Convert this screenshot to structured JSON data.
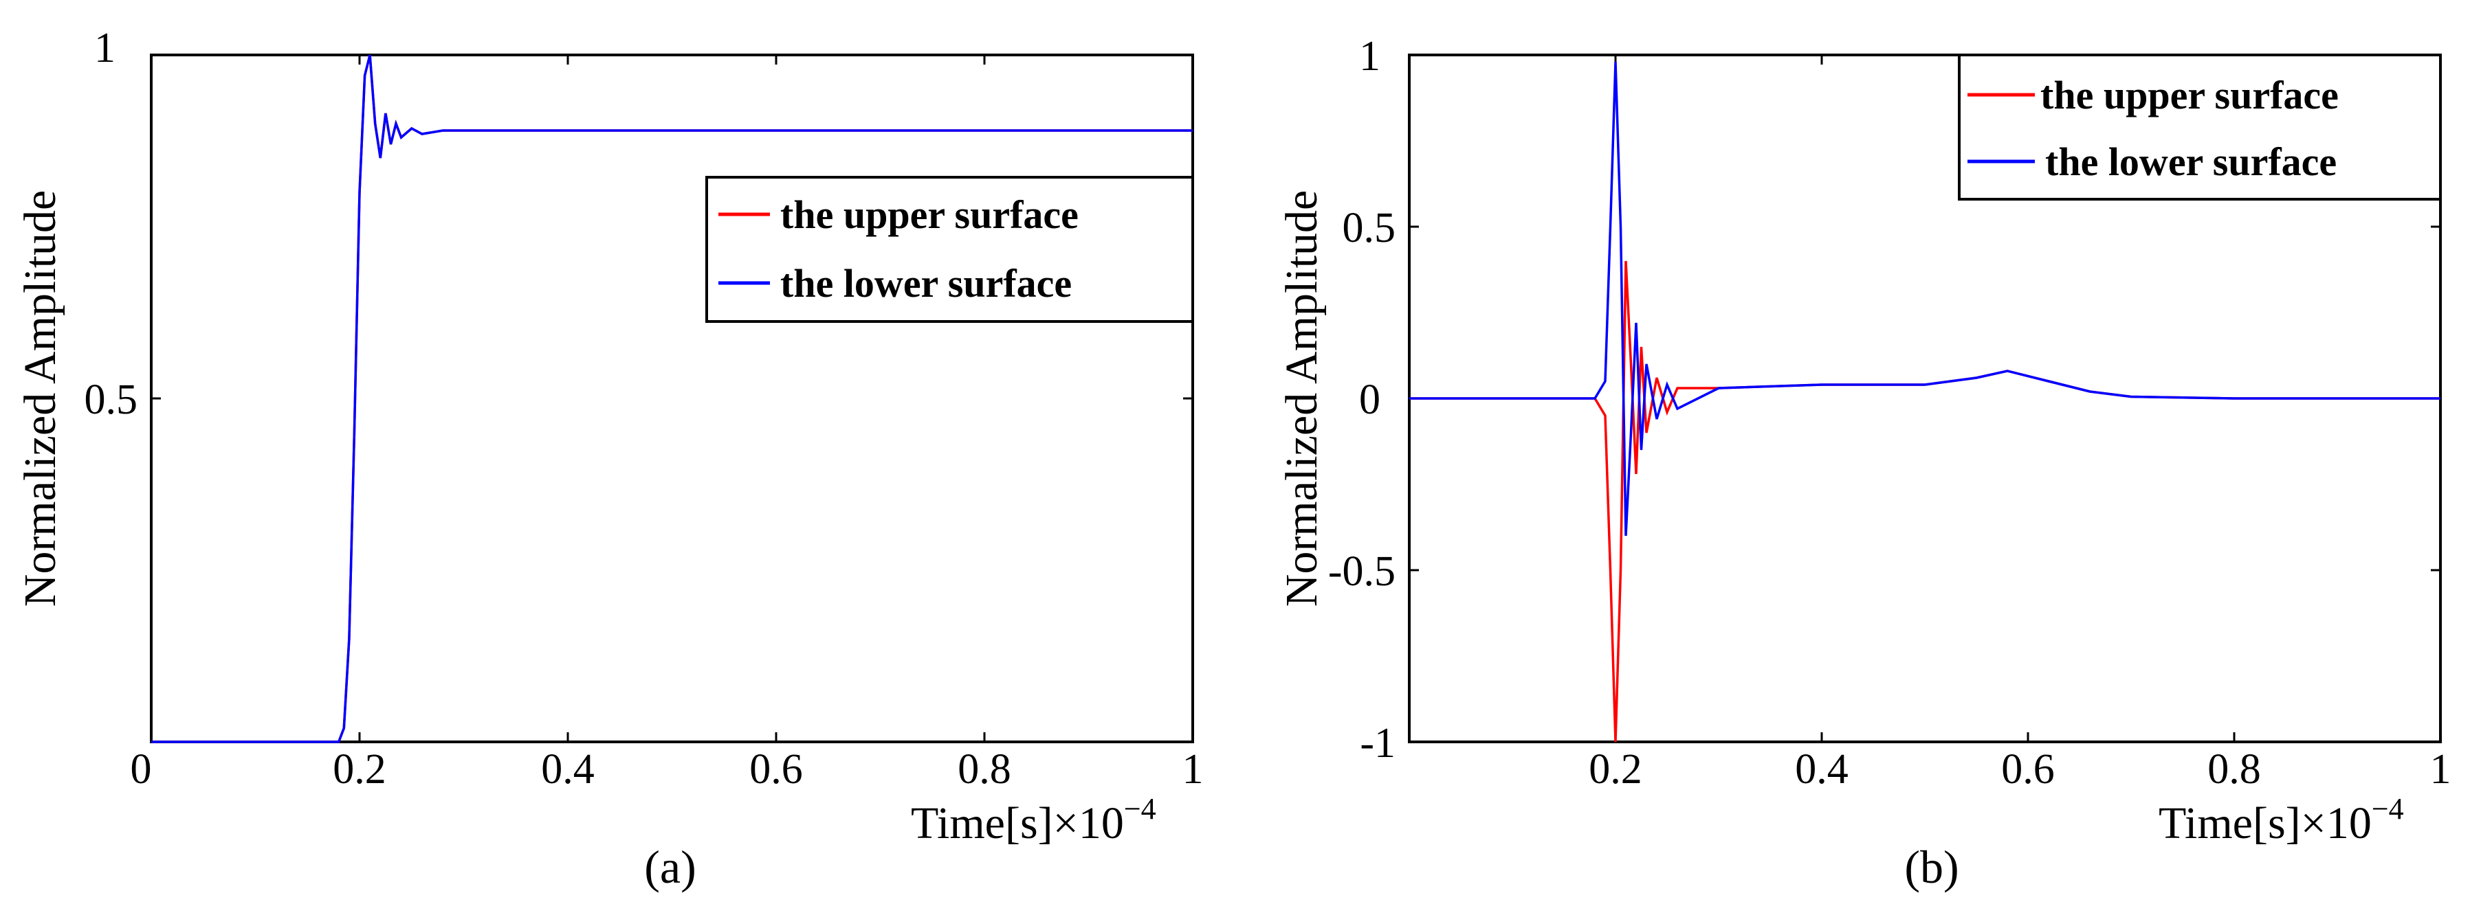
{
  "chart_data": [
    {
      "id": "a",
      "type": "line",
      "caption": "(a)",
      "xlabel": "Time[s]",
      "xscale": "×10",
      "xscale_exp": "−4",
      "ylabel": "Normalized Amplitude",
      "xlim": [
        0,
        1
      ],
      "ylim": [
        0,
        1
      ],
      "xticks": [
        0,
        0.2,
        0.4,
        0.6,
        0.8,
        1
      ],
      "xtick_labels": [
        "0",
        "0.2",
        "0.4",
        "0.6",
        "0.8",
        "1"
      ],
      "yticks": [
        0.5,
        1
      ],
      "ytick_labels": [
        "0.5",
        "1"
      ],
      "grid": false,
      "legend": {
        "position": "upper-right"
      },
      "series": [
        {
          "name": "the upper surface",
          "color": "#ff0000",
          "x": [
            0,
            0.18,
            0.185,
            0.19,
            0.195,
            0.2,
            0.205,
            0.21,
            0.215,
            0.22,
            0.225,
            0.23,
            0.235,
            0.24,
            0.25,
            0.26,
            0.28,
            0.3,
            0.4,
            0.6,
            0.8,
            1
          ],
          "y": [
            0,
            0,
            0.02,
            0.15,
            0.45,
            0.8,
            0.97,
            1.0,
            0.9,
            0.85,
            0.915,
            0.87,
            0.9,
            0.88,
            0.893,
            0.885,
            0.89,
            0.89,
            0.89,
            0.89,
            0.89,
            0.89
          ]
        },
        {
          "name": "the lower surface",
          "color": "#0000ff",
          "x": [
            0,
            0.18,
            0.185,
            0.19,
            0.195,
            0.2,
            0.205,
            0.21,
            0.215,
            0.22,
            0.225,
            0.23,
            0.235,
            0.24,
            0.25,
            0.26,
            0.28,
            0.3,
            0.4,
            0.6,
            0.8,
            1
          ],
          "y": [
            0,
            0,
            0.02,
            0.15,
            0.45,
            0.8,
            0.97,
            1.0,
            0.9,
            0.85,
            0.915,
            0.87,
            0.9,
            0.88,
            0.893,
            0.885,
            0.89,
            0.89,
            0.89,
            0.89,
            0.89,
            0.89
          ]
        }
      ]
    },
    {
      "id": "b",
      "type": "line",
      "caption": "(b)",
      "xlabel": "Time[s]",
      "xscale": "×10",
      "xscale_exp": "−4",
      "ylabel": "Normalized Amplitude",
      "xlim": [
        0,
        1
      ],
      "ylim": [
        -1,
        1
      ],
      "xticks": [
        0.2,
        0.4,
        0.6,
        0.8,
        1
      ],
      "xtick_labels": [
        "0.2",
        "0.4",
        "0.6",
        "0.8",
        "1"
      ],
      "yticks": [
        -1,
        -0.5,
        0,
        0.5,
        1
      ],
      "ytick_labels": [
        "-1",
        "-0.5",
        "0",
        "0.5",
        "1"
      ],
      "grid": false,
      "legend": {
        "position": "top-right"
      },
      "series": [
        {
          "name": "the upper surface",
          "color": "#ff0000",
          "x": [
            0,
            0.18,
            0.19,
            0.195,
            0.2,
            0.205,
            0.21,
            0.215,
            0.22,
            0.225,
            0.23,
            0.24,
            0.25,
            0.26,
            0.3,
            0.4,
            0.5,
            0.55,
            0.58,
            0.62,
            0.66,
            0.7,
            0.8,
            1
          ],
          "y": [
            0,
            0,
            -0.05,
            -0.5,
            -1.0,
            -0.5,
            0.4,
            0.1,
            -0.22,
            0.15,
            -0.1,
            0.06,
            -0.04,
            0.03,
            0.03,
            0.04,
            0.04,
            0.06,
            0.08,
            0.05,
            0.02,
            0.005,
            0,
            0
          ]
        },
        {
          "name": "the lower surface",
          "color": "#0000ff",
          "x": [
            0,
            0.18,
            0.19,
            0.195,
            0.2,
            0.205,
            0.21,
            0.215,
            0.22,
            0.225,
            0.23,
            0.24,
            0.25,
            0.26,
            0.3,
            0.4,
            0.5,
            0.55,
            0.58,
            0.62,
            0.66,
            0.7,
            0.8,
            1
          ],
          "y": [
            0,
            0,
            0.05,
            0.5,
            0.98,
            0.5,
            -0.4,
            -0.1,
            0.22,
            -0.15,
            0.1,
            -0.06,
            0.04,
            -0.03,
            0.03,
            0.04,
            0.04,
            0.06,
            0.08,
            0.05,
            0.02,
            0.005,
            0,
            0
          ]
        }
      ]
    }
  ]
}
